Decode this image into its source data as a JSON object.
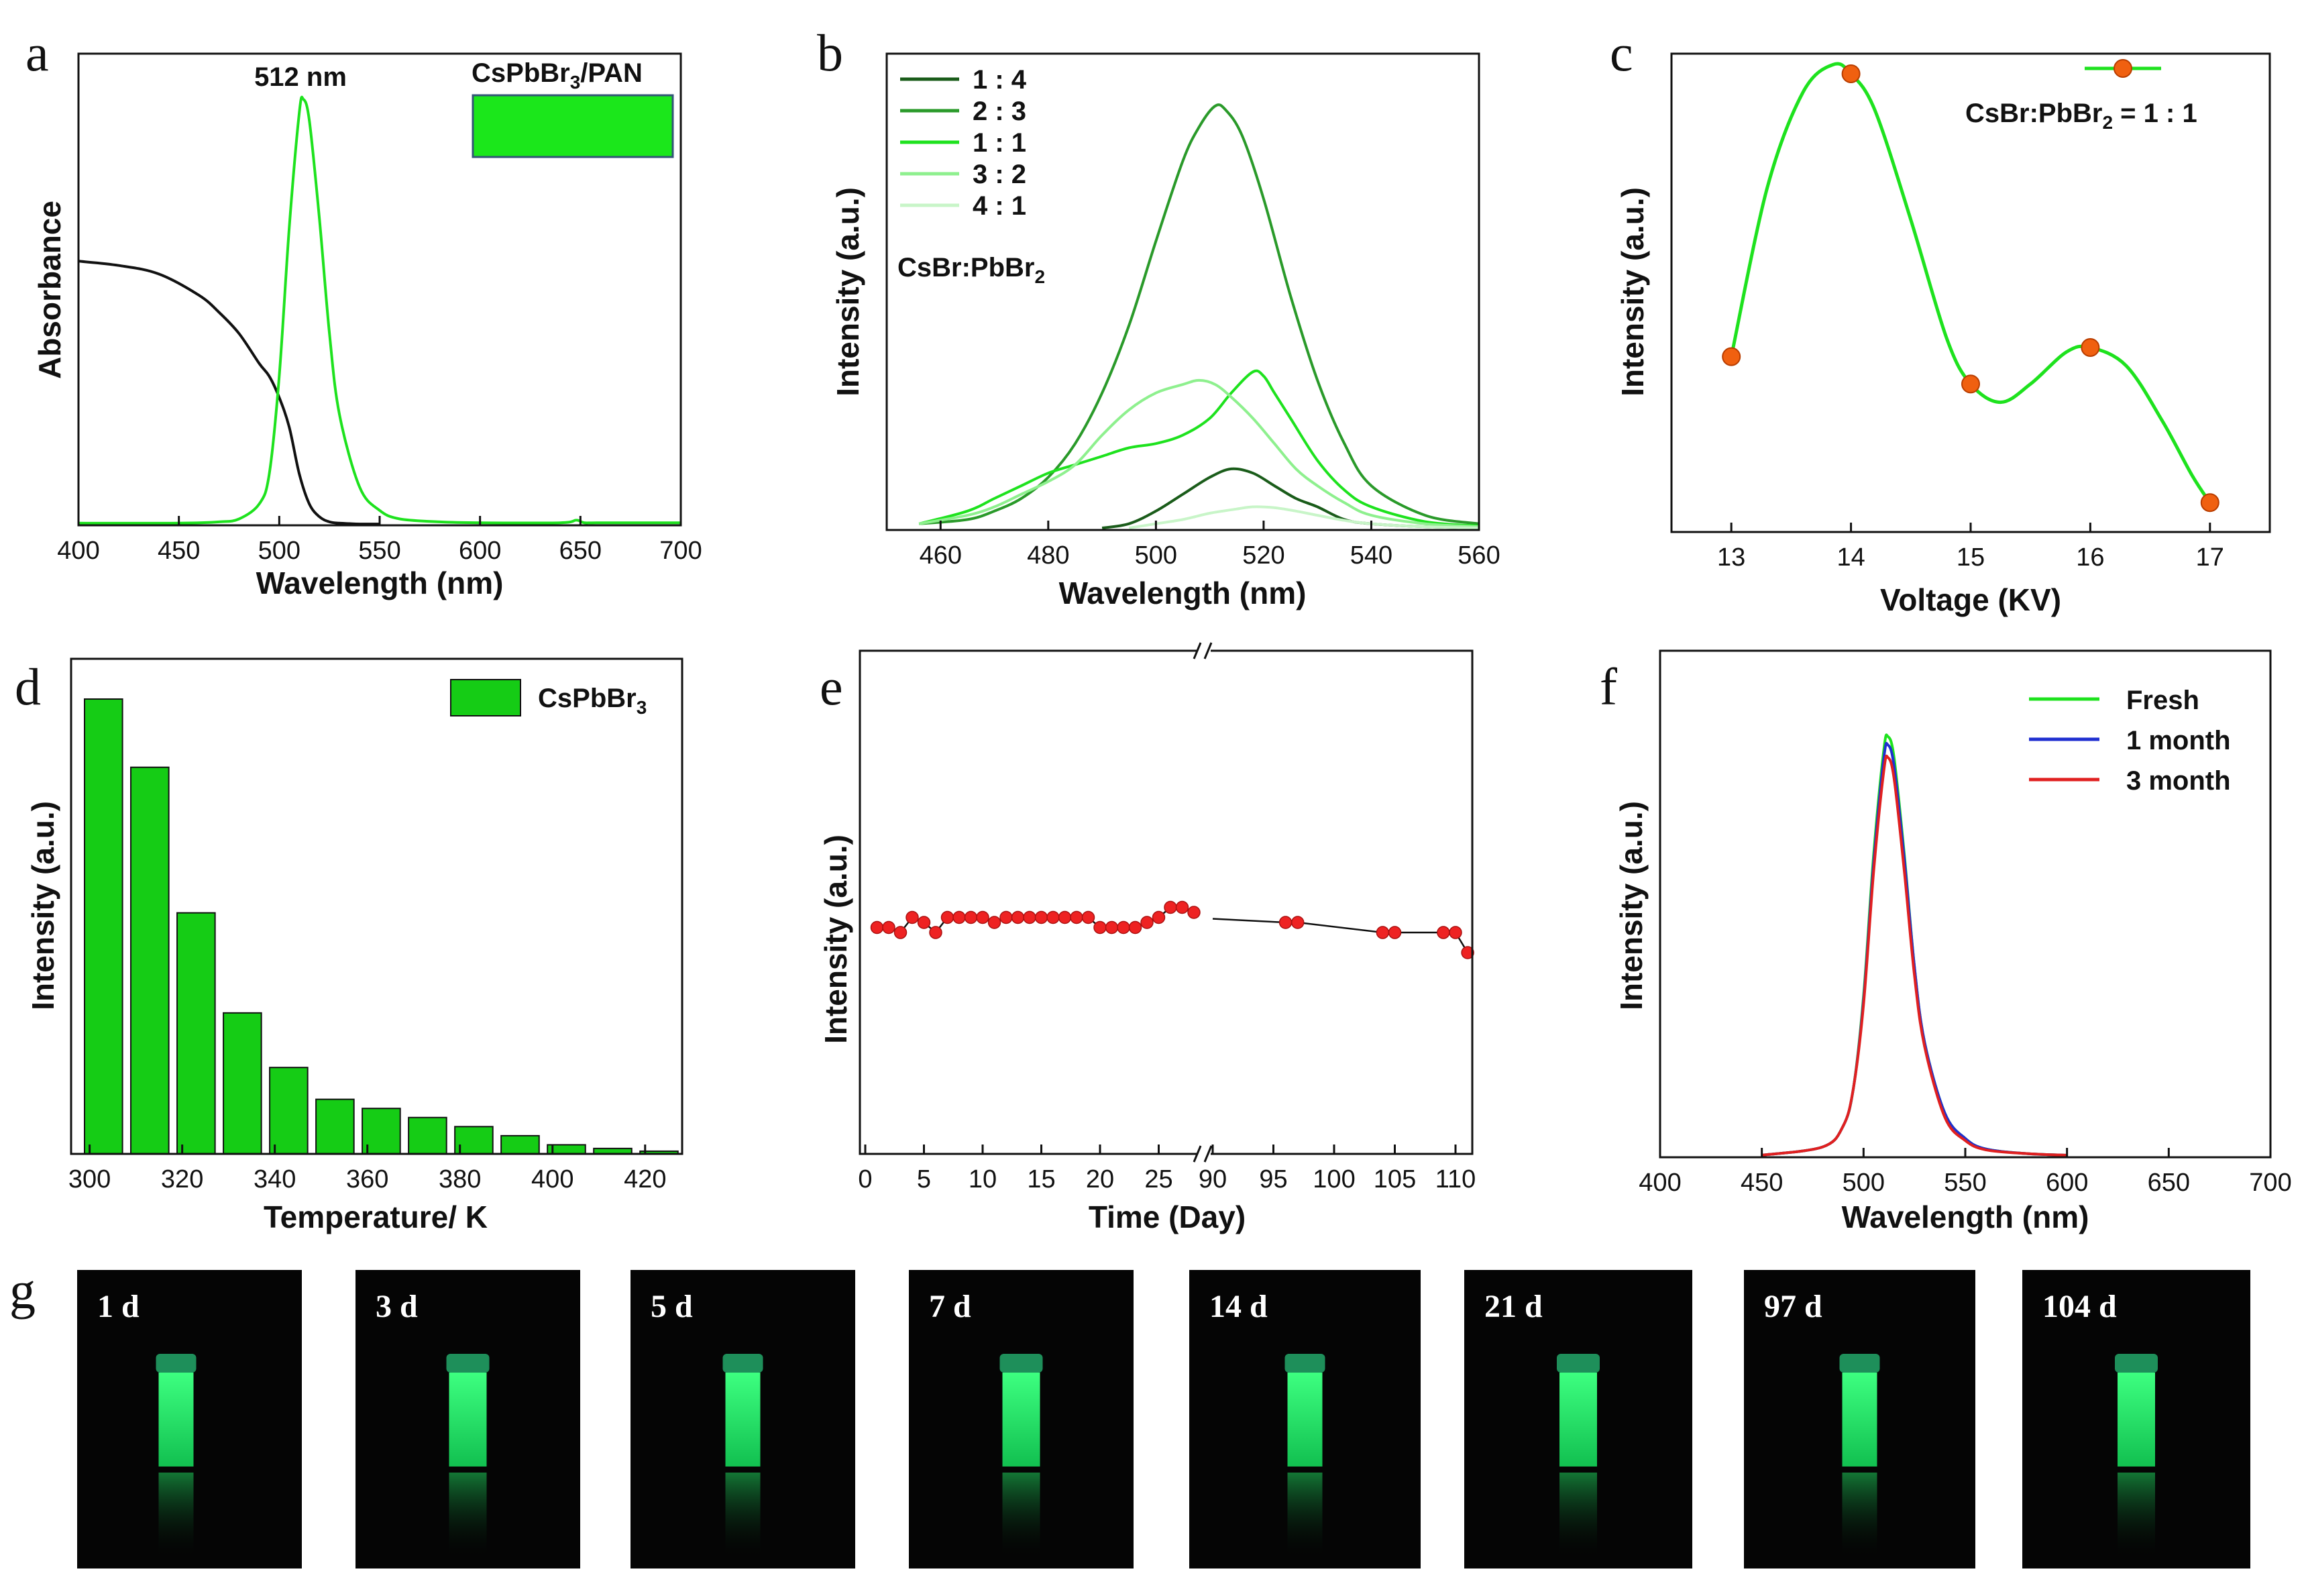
{
  "panel_labels": [
    "a",
    "b",
    "c",
    "d",
    "e",
    "f",
    "g"
  ],
  "colors": {
    "black": "#111111",
    "green": "#1ee21e",
    "bar_green": "#15cc15",
    "red_marker": "#ee2222",
    "orange_marker": "#f06010",
    "blue": "#1f2fd0",
    "red": "#e02020",
    "dark_green": "#1a5c1a",
    "mid_green": "#2a9a2a",
    "light_green": "#8ef08e",
    "pale_green": "#c8f5c8"
  },
  "chart_data": [
    {
      "id": "a",
      "type": "line",
      "xlabel": "Wavelength (nm)",
      "ylabel": "Absorbance",
      "xlim": [
        400,
        700
      ],
      "xticks": [
        400,
        450,
        500,
        550,
        600,
        650,
        700
      ],
      "ylim": [
        0,
        1
      ],
      "annotation": "512 nm",
      "inset_label": "CsPbBr3/PAN",
      "series": [
        {
          "kind": "absorbance",
          "color": "#111111",
          "x": [
            400,
            420,
            440,
            460,
            470,
            480,
            490,
            495,
            500,
            505,
            510,
            515,
            520,
            525,
            530,
            535,
            540,
            550
          ],
          "y": [
            0.62,
            0.61,
            0.59,
            0.54,
            0.5,
            0.45,
            0.38,
            0.35,
            0.3,
            0.23,
            0.12,
            0.05,
            0.02,
            0.008,
            0.005,
            0.004,
            0.003,
            0.003
          ]
        },
        {
          "kind": "emission",
          "color": "#1ee21e",
          "x": [
            400,
            450,
            470,
            480,
            490,
            495,
            500,
            505,
            510,
            512,
            515,
            520,
            525,
            530,
            540,
            550,
            560,
            580,
            600,
            640,
            648,
            652,
            660,
            700
          ],
          "y": [
            0.005,
            0.005,
            0.008,
            0.015,
            0.05,
            0.12,
            0.35,
            0.7,
            0.97,
            1.0,
            0.95,
            0.72,
            0.45,
            0.26,
            0.09,
            0.035,
            0.015,
            0.008,
            0.006,
            0.006,
            0.012,
            0.006,
            0.006,
            0.006
          ]
        }
      ]
    },
    {
      "id": "b",
      "type": "line",
      "xlabel": "Wavelength (nm)",
      "ylabel": "Intensity (a.u.)",
      "xlim": [
        450,
        560
      ],
      "xticks": [
        460,
        480,
        500,
        520,
        540,
        560
      ],
      "ylim": [
        0,
        1.1
      ],
      "legend_note": "CsBr:PbBr2",
      "series": [
        {
          "name": "1 : 4",
          "color": "#1a5c1a",
          "x": [
            490,
            495,
            500,
            505,
            510,
            514,
            518,
            522,
            526,
            530,
            535,
            540,
            550,
            560
          ],
          "y": [
            0.0,
            0.01,
            0.04,
            0.08,
            0.12,
            0.14,
            0.13,
            0.1,
            0.07,
            0.05,
            0.02,
            0.01,
            0.003,
            0.0
          ]
        },
        {
          "name": "2 : 3",
          "color": "#2a9a2a",
          "x": [
            456,
            465,
            470,
            475,
            480,
            485,
            490,
            495,
            500,
            505,
            508,
            511,
            513,
            516,
            520,
            525,
            530,
            535,
            540,
            550,
            560
          ],
          "y": [
            0.01,
            0.02,
            0.04,
            0.07,
            0.12,
            0.2,
            0.32,
            0.48,
            0.68,
            0.87,
            0.95,
            1.0,
            0.99,
            0.93,
            0.78,
            0.55,
            0.35,
            0.2,
            0.1,
            0.03,
            0.01
          ]
        },
        {
          "name": "1 : 1",
          "color": "#1ee21e",
          "x": [
            456,
            465,
            470,
            475,
            480,
            485,
            490,
            495,
            500,
            505,
            510,
            514,
            518,
            520,
            522,
            525,
            530,
            535,
            540,
            550,
            560
          ],
          "y": [
            0.01,
            0.04,
            0.07,
            0.1,
            0.13,
            0.15,
            0.17,
            0.19,
            0.2,
            0.22,
            0.26,
            0.32,
            0.37,
            0.36,
            0.32,
            0.26,
            0.16,
            0.09,
            0.05,
            0.015,
            0.005
          ]
        },
        {
          "name": "3 : 2",
          "color": "#8ef08e",
          "x": [
            456,
            465,
            470,
            475,
            480,
            485,
            490,
            495,
            500,
            505,
            508,
            511,
            514,
            518,
            522,
            526,
            530,
            535,
            540,
            550,
            560
          ],
          "y": [
            0.01,
            0.03,
            0.05,
            0.08,
            0.11,
            0.15,
            0.22,
            0.28,
            0.32,
            0.34,
            0.35,
            0.34,
            0.31,
            0.26,
            0.2,
            0.14,
            0.1,
            0.06,
            0.03,
            0.01,
            0.003
          ]
        },
        {
          "name": "4 : 1",
          "color": "#c8f5c8",
          "x": [
            495,
            500,
            505,
            510,
            515,
            518,
            522,
            526,
            530,
            535,
            540,
            550,
            560
          ],
          "y": [
            0.0,
            0.01,
            0.02,
            0.035,
            0.045,
            0.05,
            0.048,
            0.04,
            0.03,
            0.018,
            0.01,
            0.003,
            0.0
          ]
        }
      ]
    },
    {
      "id": "c",
      "type": "line",
      "xlabel": "Voltage (KV)",
      "ylabel": "Intensity (a.u.)",
      "xlim": [
        12.5,
        17.5
      ],
      "xticks": [
        13,
        14,
        15,
        16,
        17
      ],
      "ylim": [
        0,
        1.1
      ],
      "legend_note": "CsBr:PbBr2 = 1 : 1",
      "points": {
        "x": [
          13,
          14,
          15,
          16,
          17
        ],
        "y": [
          0.38,
          1.0,
          0.32,
          0.4,
          0.06
        ]
      },
      "curve": {
        "x": [
          13,
          13.3,
          13.6,
          13.85,
          14,
          14.2,
          14.5,
          14.8,
          15,
          15.25,
          15.5,
          15.8,
          16,
          16.3,
          16.6,
          16.85,
          17
        ],
        "y": [
          0.38,
          0.75,
          0.96,
          1.02,
          1.0,
          0.92,
          0.68,
          0.42,
          0.32,
          0.28,
          0.32,
          0.39,
          0.4,
          0.36,
          0.24,
          0.12,
          0.06
        ]
      }
    },
    {
      "id": "d",
      "type": "bar",
      "xlabel": "Temperature/ K",
      "ylabel": "Intensity (a.u.)",
      "xlim": [
        296,
        428
      ],
      "xticks": [
        300,
        320,
        340,
        360,
        380,
        400,
        420
      ],
      "ylim": [
        0,
        1.1
      ],
      "legend": "CsPbBr3",
      "x": [
        303,
        313,
        323,
        333,
        343,
        353,
        363,
        373,
        383,
        393,
        403,
        413,
        423
      ],
      "values": [
        1.0,
        0.85,
        0.53,
        0.31,
        0.19,
        0.12,
        0.1,
        0.08,
        0.06,
        0.04,
        0.02,
        0.012,
        0.006
      ]
    },
    {
      "id": "e",
      "type": "scatter",
      "xlabel": "Time (Day)",
      "ylabel": "Intensity (a.u.)",
      "xticks": [
        0,
        5,
        10,
        15,
        20,
        25,
        90,
        95,
        100,
        105,
        110
      ],
      "ylim": [
        0,
        1
      ],
      "x": [
        1,
        2,
        3,
        4,
        5,
        6,
        7,
        8,
        9,
        10,
        11,
        12,
        13,
        14,
        15,
        16,
        17,
        18,
        19,
        20,
        21,
        22,
        23,
        24,
        25,
        26,
        27,
        28,
        96,
        97,
        104,
        105,
        109,
        110,
        111
      ],
      "values": [
        0.45,
        0.45,
        0.44,
        0.47,
        0.46,
        0.44,
        0.47,
        0.47,
        0.47,
        0.47,
        0.46,
        0.47,
        0.47,
        0.47,
        0.47,
        0.47,
        0.47,
        0.47,
        0.47,
        0.45,
        0.45,
        0.45,
        0.45,
        0.46,
        0.47,
        0.49,
        0.49,
        0.48,
        0.46,
        0.46,
        0.44,
        0.44,
        0.44,
        0.44,
        0.4
      ]
    },
    {
      "id": "f",
      "type": "line",
      "xlabel": "Wavelength (nm)",
      "ylabel": "Intensity (a.u.)",
      "xlim": [
        400,
        700
      ],
      "xticks": [
        400,
        450,
        500,
        550,
        600,
        650,
        700
      ],
      "ylim": [
        0,
        1.1
      ],
      "series": [
        {
          "name": "Fresh",
          "color": "#1ee21e",
          "x": [
            450,
            480,
            490,
            495,
            500,
            505,
            510,
            512,
            515,
            520,
            525,
            530,
            540,
            550,
            560,
            580,
            600
          ],
          "y": [
            0.0,
            0.02,
            0.07,
            0.16,
            0.38,
            0.72,
            0.97,
            1.0,
            0.95,
            0.72,
            0.45,
            0.27,
            0.1,
            0.04,
            0.015,
            0.004,
            0.0
          ]
        },
        {
          "name": "1 month",
          "color": "#1f2fd0",
          "x": [
            450,
            480,
            490,
            495,
            500,
            505,
            510,
            512,
            515,
            520,
            525,
            530,
            540,
            550,
            560,
            580,
            600
          ],
          "y": [
            0.0,
            0.02,
            0.07,
            0.16,
            0.37,
            0.7,
            0.95,
            0.98,
            0.93,
            0.71,
            0.45,
            0.27,
            0.1,
            0.04,
            0.015,
            0.004,
            0.0
          ]
        },
        {
          "name": "3 month",
          "color": "#e02020",
          "x": [
            450,
            480,
            490,
            495,
            500,
            505,
            510,
            512,
            515,
            520,
            525,
            530,
            540,
            550,
            560,
            580,
            600
          ],
          "y": [
            0.0,
            0.02,
            0.07,
            0.16,
            0.36,
            0.68,
            0.92,
            0.95,
            0.9,
            0.68,
            0.43,
            0.26,
            0.09,
            0.035,
            0.013,
            0.004,
            0.0
          ]
        }
      ]
    }
  ],
  "photos": [
    "1 d",
    "3 d",
    "5 d",
    "7 d",
    "14 d",
    "21 d",
    "97 d",
    "104 d"
  ]
}
